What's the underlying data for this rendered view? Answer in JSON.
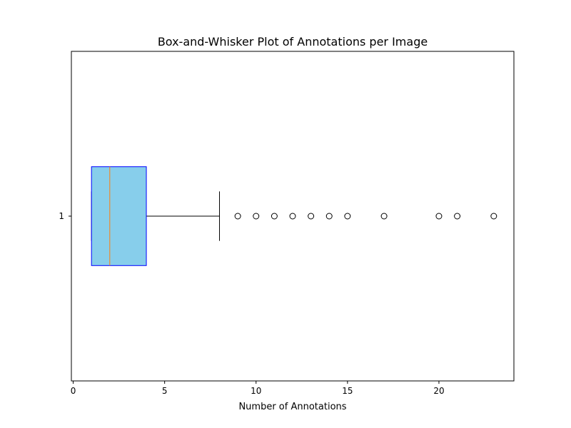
{
  "chart_data": {
    "type": "boxplot",
    "orientation": "horizontal",
    "title": "Box-and-Whisker Plot of Annotations per Image",
    "xlabel": "Number of Annotations",
    "ylabel": "",
    "xlim": [
      -0.1,
      24.1
    ],
    "xticks": [
      0,
      5,
      10,
      15,
      20
    ],
    "xtick_labels": [
      "0",
      "5",
      "10",
      "15",
      "20"
    ],
    "categories": [
      "1"
    ],
    "grid": false,
    "boxes": [
      {
        "category": "1",
        "whisker_low": 1,
        "q1": 1,
        "median": 2,
        "q3": 4,
        "whisker_high": 8,
        "outliers": [
          9,
          10,
          11,
          12,
          13,
          14,
          15,
          17,
          20,
          21,
          23
        ]
      }
    ],
    "colors": {
      "box_fill": "#87ceeb",
      "box_edge": "#0000ff",
      "median": "#ff7f0e",
      "whisker": "#000000",
      "outlier_edge": "#000000"
    }
  }
}
